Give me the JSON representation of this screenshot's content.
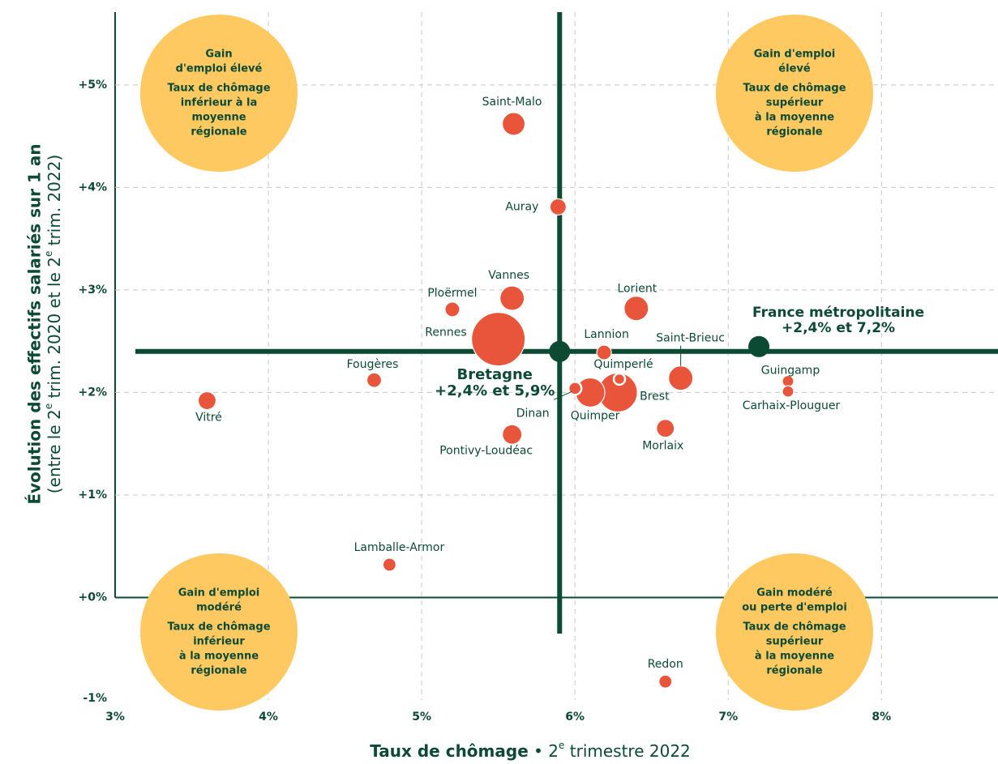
{
  "chart_data": {
    "type": "scatter",
    "xlabel": [
      "Taux de chômage",
      " • 2",
      "e",
      " trimestre 2022"
    ],
    "ylabel": [
      "Évolution des effectifs salariés sur 1 an",
      "(entre le 2",
      "e",
      " trim. 2020 et le 2",
      "e",
      " trim. 2022)"
    ],
    "labels": [
      "Saint-Malo",
      "Auray",
      "Vannes",
      "Ploërmel",
      "Rennes",
      "Lorient",
      "Lannion",
      "Saint-Brieuc",
      "Quimperlé",
      "Brest",
      "Quimper",
      "Dinan",
      "Fougères",
      "Vitré",
      "Pontivy-Loudéac",
      "Morlaix",
      "Guingamp",
      "Carhaix-Plouguer",
      "Lamballe-Armor",
      "Redon"
    ],
    "x": [
      5.6,
      5.89,
      5.59,
      5.2,
      5.5,
      6.4,
      6.19,
      6.69,
      6.29,
      6.28,
      6.1,
      6.0,
      4.69,
      3.6,
      5.59,
      6.59,
      7.39,
      7.39,
      4.79,
      6.59
    ],
    "y": [
      4.62,
      3.81,
      2.92,
      2.81,
      2.52,
      2.82,
      2.39,
      2.14,
      2.13,
      2.0,
      2.0,
      2.04,
      2.12,
      1.92,
      1.59,
      1.65,
      2.11,
      2.01,
      0.32,
      -0.82
    ],
    "sizes": [
      14,
      10,
      15,
      9,
      33,
      15,
      9,
      15,
      7,
      24,
      18,
      8,
      9,
      11,
      12,
      11,
      7,
      7,
      8,
      8
    ],
    "color": "#e8553b",
    "reference_points": [
      {
        "name": "Bretagne",
        "x": 5.9,
        "y": 2.4,
        "value_label": "+2,4% et 5,9%"
      },
      {
        "name": "France métropolitaine",
        "x": 7.2,
        "y": 2.4,
        "value_label": "+2,4% et 7,2%"
      }
    ],
    "reference_color": "#0b4a33",
    "quadrants": [
      {
        "heading": [
          "Gain",
          "d'emploi élevé"
        ],
        "body": [
          "Taux de chômage",
          "inférieur à la",
          "moyenne",
          "régionale"
        ]
      },
      {
        "heading": [
          "Gain d'emploi",
          "élevé"
        ],
        "body": [
          "Taux de chômage",
          "supérieur",
          "à la moyenne",
          "régionale"
        ]
      },
      {
        "heading": [
          "Gain d'emploi",
          "modéré"
        ],
        "body": [
          "Taux de chômage",
          "inférieur",
          "à la moyenne",
          "régionale"
        ]
      },
      {
        "heading": [
          "Gain modéré",
          "ou perte d'emploi"
        ],
        "body": [
          "Taux de chômage",
          "supérieur",
          "à la moyenne",
          "régionale"
        ]
      }
    ],
    "quadrant_color": "#fdc960",
    "xlim": [
      3,
      8.76
    ],
    "ylim": [
      -1,
      5.71
    ],
    "xticks": [
      {
        "value": 3,
        "label": "3%"
      },
      {
        "value": 4,
        "label": "4%"
      },
      {
        "value": 5,
        "label": "5%"
      },
      {
        "value": 6,
        "label": "6%"
      },
      {
        "value": 7,
        "label": "7%"
      },
      {
        "value": 8,
        "label": "8%"
      }
    ],
    "yticks": [
      {
        "value": -1,
        "label": "-1%"
      },
      {
        "value": 0,
        "label": "+0%"
      },
      {
        "value": 1,
        "label": "+1%"
      },
      {
        "value": 2,
        "label": "+2%"
      },
      {
        "value": 3,
        "label": "+3%"
      },
      {
        "value": 4,
        "label": "+4%"
      },
      {
        "value": 5,
        "label": "+5%"
      }
    ],
    "grid": true
  }
}
